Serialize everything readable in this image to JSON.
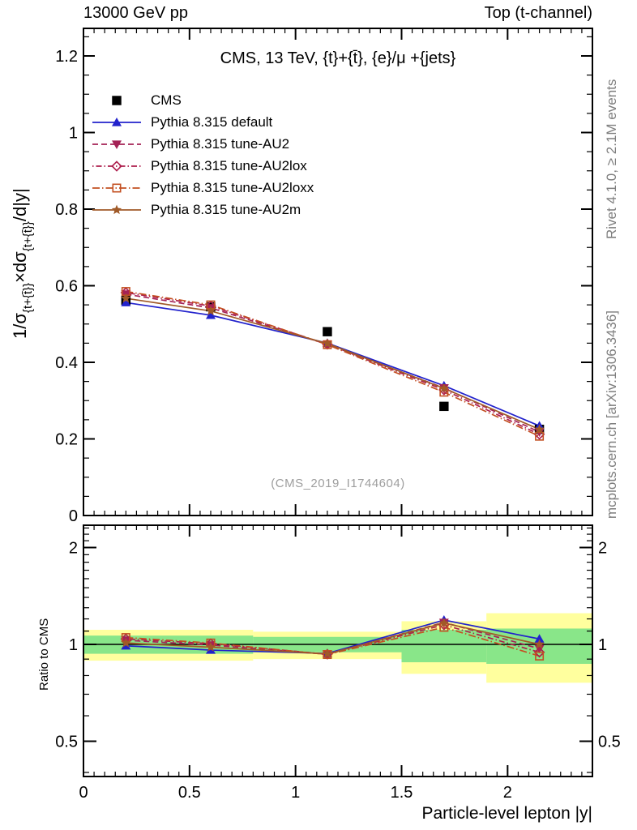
{
  "header": {
    "left": "13000 GeV pp",
    "right": "Top (t-channel)"
  },
  "watermark": "(CMS_2019_I1744604)",
  "side_notes": {
    "top": "Rivet 4.1.0, ≥ 2.1M events",
    "bottom": "mcplots.cern.ch [arXiv:1306.3436]"
  },
  "colors": {
    "frame": "#000000",
    "gray_text": "#7e7e7e",
    "watermark_gray": "#9e9e9e"
  },
  "chart_data": {
    "type": "line",
    "title": "CMS, 13 TeV, {t}+{t̄}, {e}/μ +{jets}",
    "xlabel": "Particle-level lepton |y|",
    "ylabel": "1/σ{t+{t̄}}×dσ{t+{t̄}}/d|y|",
    "ylabel_segments": [
      {
        "text": "1/σ",
        "sub": false
      },
      {
        "text": "{t+{t̄}}",
        "sub": true
      },
      {
        "text": "×dσ",
        "sub": false
      },
      {
        "text": "{t+{t̄}}",
        "sub": true
      },
      {
        "text": "/d|y|",
        "sub": false
      }
    ],
    "xlim": [
      0,
      2.4
    ],
    "ylim": [
      0,
      1.27
    ],
    "xticks": [
      0,
      0.5,
      1,
      1.5,
      2
    ],
    "yticks": [
      0,
      0.2,
      0.4,
      0.6,
      0.8,
      1,
      1.2
    ],
    "x": [
      0.2,
      0.6,
      1.15,
      1.7,
      2.15
    ],
    "bin_edges": [
      0,
      0.4,
      0.8,
      1.5,
      1.9,
      2.4
    ],
    "series": [
      {
        "name": "CMS",
        "color": "#000000",
        "marker": "square-filled",
        "line": "none",
        "values": [
          0.562,
          0.545,
          0.48,
          0.285,
          0.225
        ]
      },
      {
        "name": "Pythia 8.315 default",
        "color": "#2222cc",
        "marker": "triangle-up-filled",
        "line": "solid",
        "values": [
          0.556,
          0.523,
          0.45,
          0.339,
          0.234
        ],
        "ratio": [
          0.99,
          0.96,
          0.937,
          1.19,
          1.04
        ]
      },
      {
        "name": "Pythia 8.315 tune-AU2",
        "color": "#a42256",
        "marker": "triangle-down-filled",
        "line": "dashed",
        "values": [
          0.578,
          0.542,
          0.447,
          0.333,
          0.218
        ],
        "ratio": [
          1.03,
          0.995,
          0.932,
          1.17,
          0.97
        ]
      },
      {
        "name": "Pythia 8.315 tune-AU2lox",
        "color": "#ad1e4c",
        "marker": "diamond-open",
        "line": "dash-dot",
        "values": [
          0.582,
          0.547,
          0.447,
          0.328,
          0.212
        ],
        "ratio": [
          1.04,
          1.005,
          0.932,
          1.15,
          0.945
        ]
      },
      {
        "name": "Pythia 8.315 tune-AU2loxx",
        "color": "#c35022",
        "marker": "square-open",
        "line": "dash-dot-long",
        "values": [
          0.585,
          0.55,
          0.446,
          0.322,
          0.207
        ],
        "ratio": [
          1.05,
          1.01,
          0.93,
          1.13,
          0.92
        ]
      },
      {
        "name": "Pythia 8.315 tune-AU2m",
        "color": "#a05a28",
        "marker": "star-filled",
        "line": "solid",
        "values": [
          0.567,
          0.534,
          0.449,
          0.332,
          0.225
        ],
        "ratio": [
          1.01,
          0.98,
          0.934,
          1.165,
          1.0
        ]
      }
    ],
    "ratio": {
      "label": "Ratio to CMS",
      "yticks": [
        0.5,
        1,
        2
      ],
      "ylim_log": [
        0.39,
        2.35
      ],
      "band_colors": {
        "outer": "#ffff9e",
        "inner": "#89e689"
      },
      "bands": [
        {
          "x0": 0.0,
          "x1": 0.8,
          "outer": [
            0.89,
            1.11
          ],
          "inner": [
            0.935,
            1.065
          ]
        },
        {
          "x0": 0.8,
          "x1": 1.5,
          "outer": [
            0.9,
            1.095
          ],
          "inner": [
            0.945,
            1.055
          ]
        },
        {
          "x0": 1.5,
          "x1": 1.9,
          "outer": [
            0.81,
            1.18
          ],
          "inner": [
            0.88,
            1.11
          ]
        },
        {
          "x0": 1.9,
          "x1": 2.4,
          "outer": [
            0.76,
            1.25
          ],
          "inner": [
            0.87,
            1.12
          ]
        }
      ]
    }
  }
}
